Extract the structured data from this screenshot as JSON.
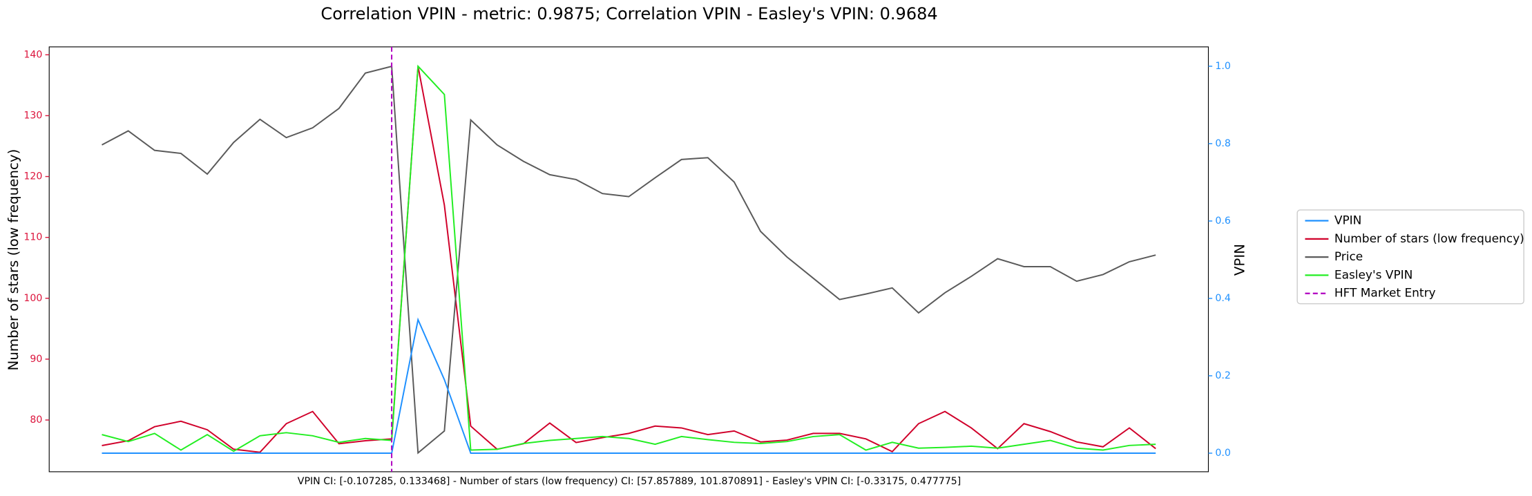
{
  "chart_data": {
    "type": "line",
    "title": "Correlation VPIN - metric: 0.9875; Correlation VPIN - Easley's VPIN: 0.9684",
    "footnote": "VPIN CI: [-0.107285, 0.133468] - Number of stars (low frequency) CI: [57.857889, 101.870891] - Easley's VPIN CI: [-0.33175, 0.477775]",
    "ylabel": "Number of stars (low frequency)",
    "y2label": "VPIN",
    "ylabel_color": "#dc143c",
    "y2label_color": "#1e90ff",
    "x": [
      0,
      1,
      2,
      3,
      4,
      5,
      6,
      7,
      8,
      9,
      10,
      11,
      12,
      13,
      14,
      15,
      16,
      17,
      18,
      19,
      20,
      21,
      22,
      23,
      24,
      25,
      26,
      27,
      28,
      29,
      30,
      31,
      32,
      33,
      34,
      35,
      36,
      37,
      38,
      39,
      40
    ],
    "xlim": [
      -2,
      42
    ],
    "ylim": [
      71.5,
      141.3
    ],
    "yticks": [
      80,
      90,
      100,
      110,
      120,
      130,
      140
    ],
    "y2lim": [
      -0.048,
      1.05
    ],
    "y2ticks": [
      {
        "value": 0,
        "label": "0.0"
      },
      {
        "value": 0.2,
        "label": "0.2"
      },
      {
        "value": 0.4,
        "label": "0.4"
      },
      {
        "value": 0.6,
        "label": "0.6"
      },
      {
        "value": 0.8,
        "label": "0.8"
      },
      {
        "value": 1,
        "label": "1.0"
      }
    ],
    "legend": "outside-right",
    "series": [
      {
        "name": "VPIN",
        "color": "#1e90ff",
        "axis": "y2",
        "values": [
          0,
          0,
          0,
          0,
          0,
          0,
          0,
          0,
          0,
          0,
          0,
          0,
          0.345,
          0.19,
          0,
          0,
          0,
          0,
          0,
          0,
          0,
          0,
          0,
          0,
          0,
          0,
          0,
          0,
          0,
          0,
          0,
          0,
          0,
          0,
          0,
          0,
          0,
          0,
          0,
          0,
          0
        ]
      },
      {
        "name": "Number of stars (low frequency)",
        "color": "#d0002a",
        "axis": "y",
        "values": [
          75.8,
          76.6,
          78.9,
          79.8,
          78.4,
          75.2,
          74.7,
          79.4,
          81.4,
          76.1,
          76.6,
          76.9,
          138.1,
          115.3,
          79.0,
          75.2,
          76.1,
          79.5,
          76.3,
          77.1,
          77.8,
          79.0,
          78.7,
          77.6,
          78.2,
          76.4,
          76.7,
          77.8,
          77.8,
          76.9,
          74.8,
          79.4,
          81.4,
          78.7,
          75.3,
          79.4,
          78.1,
          76.4,
          75.6,
          78.7,
          75.3
        ]
      },
      {
        "name": "Price",
        "color": "#5a5a5a",
        "axis": "y",
        "values": [
          125.2,
          127.5,
          124.3,
          123.8,
          120.4,
          125.6,
          129.4,
          126.4,
          128.0,
          131.2,
          137.0,
          138.1,
          74.6,
          78.2,
          129.3,
          125.2,
          122.5,
          120.3,
          119.5,
          117.2,
          116.7,
          119.8,
          122.8,
          123.1,
          119.1,
          111.0,
          106.8,
          103.3,
          99.8,
          100.7,
          101.7,
          97.6,
          100.9,
          103.6,
          106.5,
          105.2,
          105.2,
          102.8,
          103.9,
          106.0,
          107.1
        ]
      },
      {
        "name": "Easley's VPIN",
        "color": "#22ee22",
        "axis": "y2",
        "values": [
          0.048,
          0.03,
          0.051,
          0.008,
          0.048,
          0.005,
          0.045,
          0.053,
          0.045,
          0.028,
          0.038,
          0.033,
          1.0,
          0.927,
          0.008,
          0.01,
          0.025,
          0.033,
          0.038,
          0.043,
          0.038,
          0.023,
          0.043,
          0.035,
          0.028,
          0.025,
          0.03,
          0.043,
          0.048,
          0.008,
          0.028,
          0.013,
          0.015,
          0.018,
          0.013,
          0.023,
          0.033,
          0.013,
          0.008,
          0.02,
          0.023
        ]
      }
    ],
    "vline": {
      "name": "HFT Market Entry",
      "x": 11,
      "color": "#b000c0"
    }
  }
}
